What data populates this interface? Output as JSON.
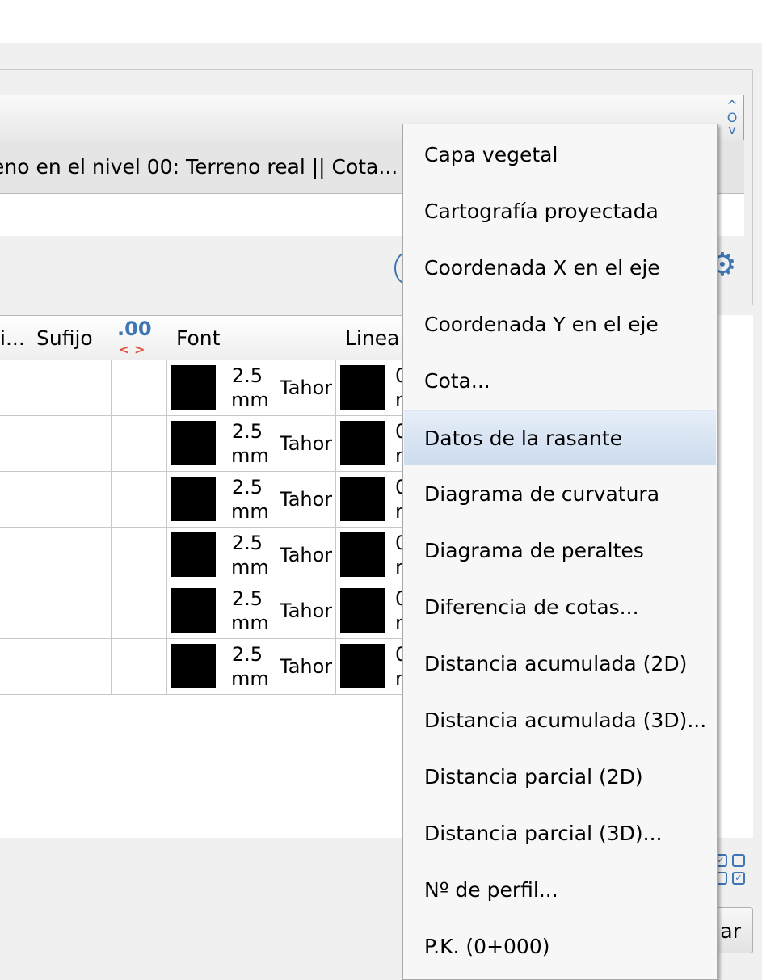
{
  "selected_row_text": "eno en el nivel 00: Terreno real || Cota...",
  "table": {
    "headers": [
      "i...",
      "Sufijo",
      ".00",
      "Font",
      "Linea"
    ],
    "decimals_arrows": "< >",
    "rows": [
      {
        "size": "2.5",
        "unit": "mm",
        "font": "Tahoma"
      },
      {
        "size": "2.5",
        "unit": "mm",
        "font": "Tahoma"
      },
      {
        "size": "2.5",
        "unit": "mm",
        "font": "Tahoma"
      },
      {
        "size": "2.5",
        "unit": "mm",
        "font": "Tahoma"
      },
      {
        "size": "2.5",
        "unit": "mm",
        "font": "Tahoma"
      },
      {
        "size": "2.5",
        "unit": "mm",
        "font": "Tahoma"
      }
    ]
  },
  "button_label": "ar",
  "menu": {
    "items": [
      "Capa vegetal",
      "Cartografía proyectada",
      "Coordenada X en el eje",
      "Coordenada Y en el eje",
      "Cota...",
      "Datos de la rasante",
      "Diagrama de curvatura",
      "Diagrama de peraltes",
      "Diferencia de cotas...",
      "Distancia acumulada (2D)",
      "Distancia acumulada (3D)...",
      "Distancia parcial (2D)",
      "Distancia parcial (3D)...",
      "Nº de perfil...",
      "P.K. (0+000)"
    ],
    "highlighted": "Datos de la rasante"
  },
  "colors": {
    "accent": "#3e76b4",
    "decimals_arrows": "#e0533a",
    "highlight": "#cddcef"
  },
  "icons": [
    "spinner-up-down-icon",
    "gear-icon",
    "select-grid-icon"
  ]
}
